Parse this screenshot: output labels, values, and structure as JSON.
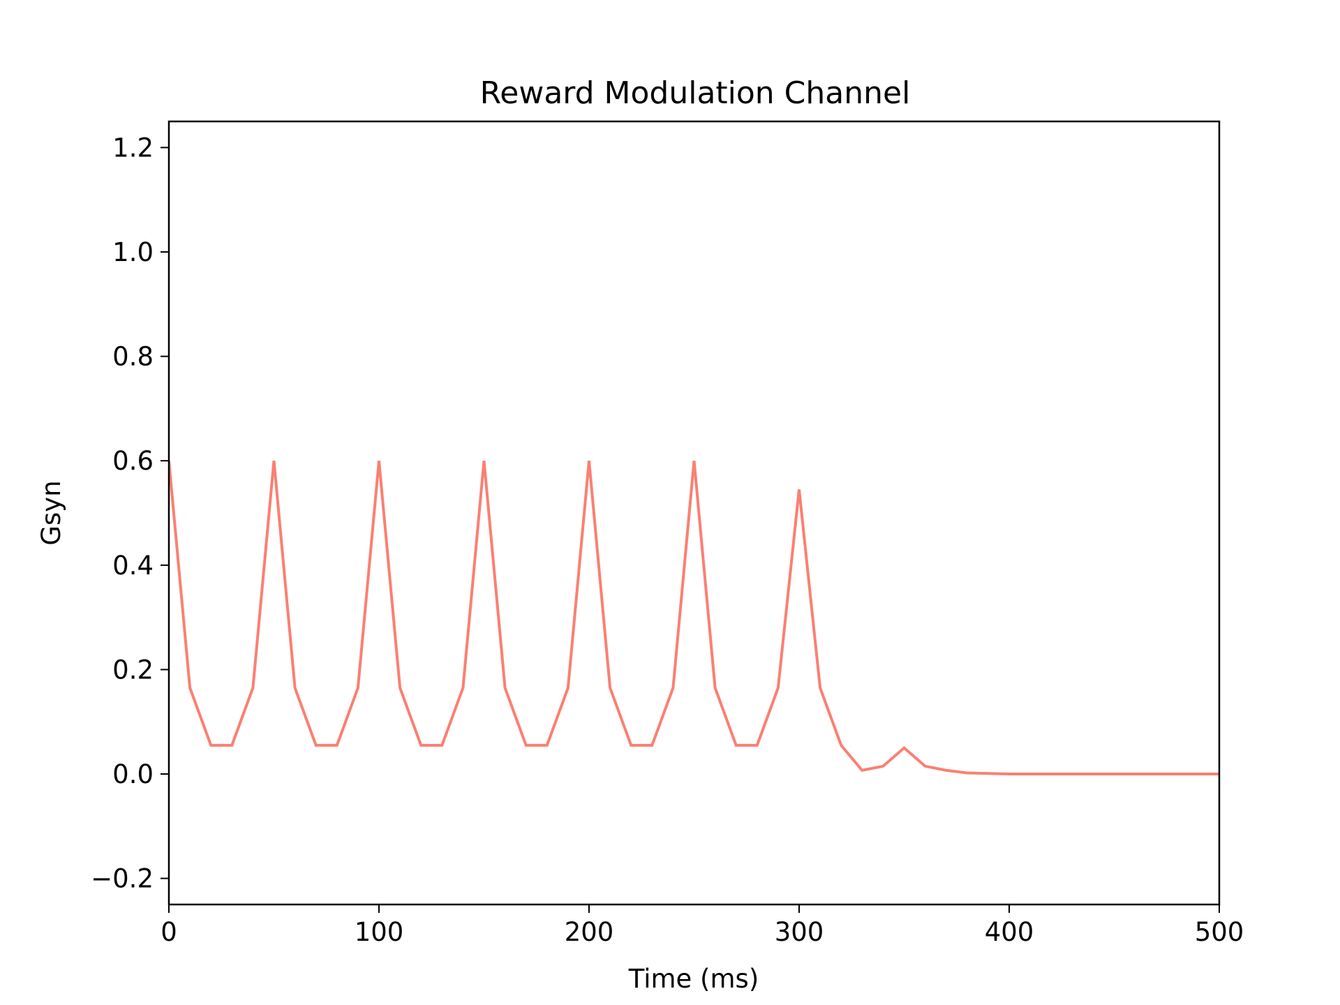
{
  "chart_data": {
    "type": "line",
    "title": "Reward Modulation Channel",
    "xlabel": "Time (ms)",
    "ylabel": "Gsyn",
    "xlim": [
      0,
      500
    ],
    "ylim": [
      -0.25,
      1.25
    ],
    "x_ticks": [
      0,
      100,
      200,
      300,
      400,
      500
    ],
    "x_tick_labels": [
      "0",
      "100",
      "200",
      "300",
      "400",
      "500"
    ],
    "y_ticks": [
      -0.2,
      0.0,
      0.2,
      0.4,
      0.6,
      0.8,
      1.0,
      1.2
    ],
    "y_tick_labels": [
      "−0.2",
      "0.0",
      "0.2",
      "0.4",
      "0.6",
      "0.8",
      "1.0",
      "1.2"
    ],
    "grid": false,
    "series": [
      {
        "color": "#fa8072",
        "x": [
          0,
          10,
          20,
          30,
          40,
          50,
          60,
          70,
          80,
          90,
          100,
          110,
          120,
          130,
          140,
          150,
          160,
          170,
          180,
          190,
          200,
          210,
          220,
          230,
          240,
          250,
          260,
          270,
          280,
          290,
          300,
          310,
          320,
          330,
          340,
          350,
          360,
          370,
          380,
          390,
          400,
          410,
          420,
          430,
          440,
          450,
          460,
          470,
          480,
          490,
          500
        ],
        "y": [
          0.6,
          0.165,
          0.055,
          0.055,
          0.165,
          0.6,
          0.165,
          0.055,
          0.055,
          0.165,
          0.6,
          0.165,
          0.055,
          0.055,
          0.165,
          0.6,
          0.165,
          0.055,
          0.055,
          0.165,
          0.6,
          0.165,
          0.055,
          0.055,
          0.165,
          0.6,
          0.165,
          0.055,
          0.055,
          0.165,
          0.545,
          0.165,
          0.055,
          0.007,
          0.015,
          0.05,
          0.015,
          0.007,
          0.002,
          0.001,
          0.0,
          0.0,
          0.0,
          0.0,
          0.0,
          0.0,
          0.0,
          0.0,
          0.0,
          0.0,
          0.0
        ]
      }
    ]
  }
}
